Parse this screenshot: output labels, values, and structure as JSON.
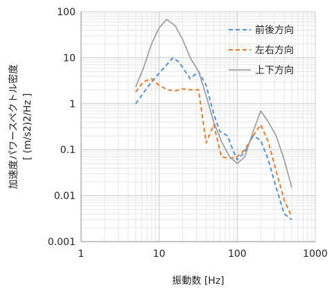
{
  "chart_data": {
    "type": "line",
    "xscale": "log",
    "yscale": "log",
    "xlim": [
      1,
      1000
    ],
    "ylim": [
      0.001,
      100
    ],
    "xticks": [
      "1",
      "10",
      "100",
      "1000"
    ],
    "yticks": [
      "100",
      "10",
      "1",
      "0.1",
      "0.01",
      "0.001"
    ],
    "xlabel": "振動数 [Hz]",
    "ylabel_line1": "加速度パワースペクトル密度",
    "ylabel_line2": "[ (m/s2)2/Hz ]",
    "grid": true,
    "legend_position": "top-right",
    "series": [
      {
        "name": "前後方向",
        "color": "#4a90e2",
        "dash": "dashed",
        "points": [
          [
            5,
            1.0
          ],
          [
            8,
            3.0
          ],
          [
            12,
            6.5
          ],
          [
            15,
            10.0
          ],
          [
            18,
            8.0
          ],
          [
            25,
            3.5
          ],
          [
            32,
            5.0
          ],
          [
            40,
            2.5
          ],
          [
            50,
            0.6
          ],
          [
            60,
            0.25
          ],
          [
            75,
            0.2
          ],
          [
            90,
            0.09
          ],
          [
            100,
            0.06
          ],
          [
            125,
            0.09
          ],
          [
            160,
            0.2
          ],
          [
            200,
            0.16
          ],
          [
            250,
            0.06
          ],
          [
            315,
            0.015
          ],
          [
            400,
            0.004
          ],
          [
            500,
            0.003
          ]
        ]
      },
      {
        "name": "左右方向",
        "color": "#f07820",
        "dash": "dashed",
        "points": [
          [
            5,
            1.8
          ],
          [
            6.3,
            3.0
          ],
          [
            8,
            3.5
          ],
          [
            10,
            2.5
          ],
          [
            13,
            2.0
          ],
          [
            16,
            1.9
          ],
          [
            20,
            2.1
          ],
          [
            25,
            2.0
          ],
          [
            32,
            2.0
          ],
          [
            40,
            0.14
          ],
          [
            50,
            0.35
          ],
          [
            63,
            0.07
          ],
          [
            80,
            0.065
          ],
          [
            100,
            0.07
          ],
          [
            125,
            0.1
          ],
          [
            160,
            0.2
          ],
          [
            200,
            0.35
          ],
          [
            250,
            0.15
          ],
          [
            315,
            0.035
          ],
          [
            400,
            0.008
          ],
          [
            500,
            0.0035
          ]
        ]
      },
      {
        "name": "上下方向",
        "color": "#a0a0a0",
        "dash": "solid",
        "points": [
          [
            5,
            2.3
          ],
          [
            6.3,
            6.0
          ],
          [
            8,
            20.0
          ],
          [
            10,
            45.0
          ],
          [
            12.5,
            68.0
          ],
          [
            16,
            50.0
          ],
          [
            20,
            25.0
          ],
          [
            25,
            10.0
          ],
          [
            32,
            5.0
          ],
          [
            40,
            1.5
          ],
          [
            50,
            0.4
          ],
          [
            63,
            0.15
          ],
          [
            80,
            0.07
          ],
          [
            100,
            0.05
          ],
          [
            125,
            0.07
          ],
          [
            160,
            0.25
          ],
          [
            200,
            0.7
          ],
          [
            250,
            0.4
          ],
          [
            315,
            0.2
          ],
          [
            400,
            0.06
          ],
          [
            500,
            0.015
          ]
        ]
      }
    ]
  }
}
